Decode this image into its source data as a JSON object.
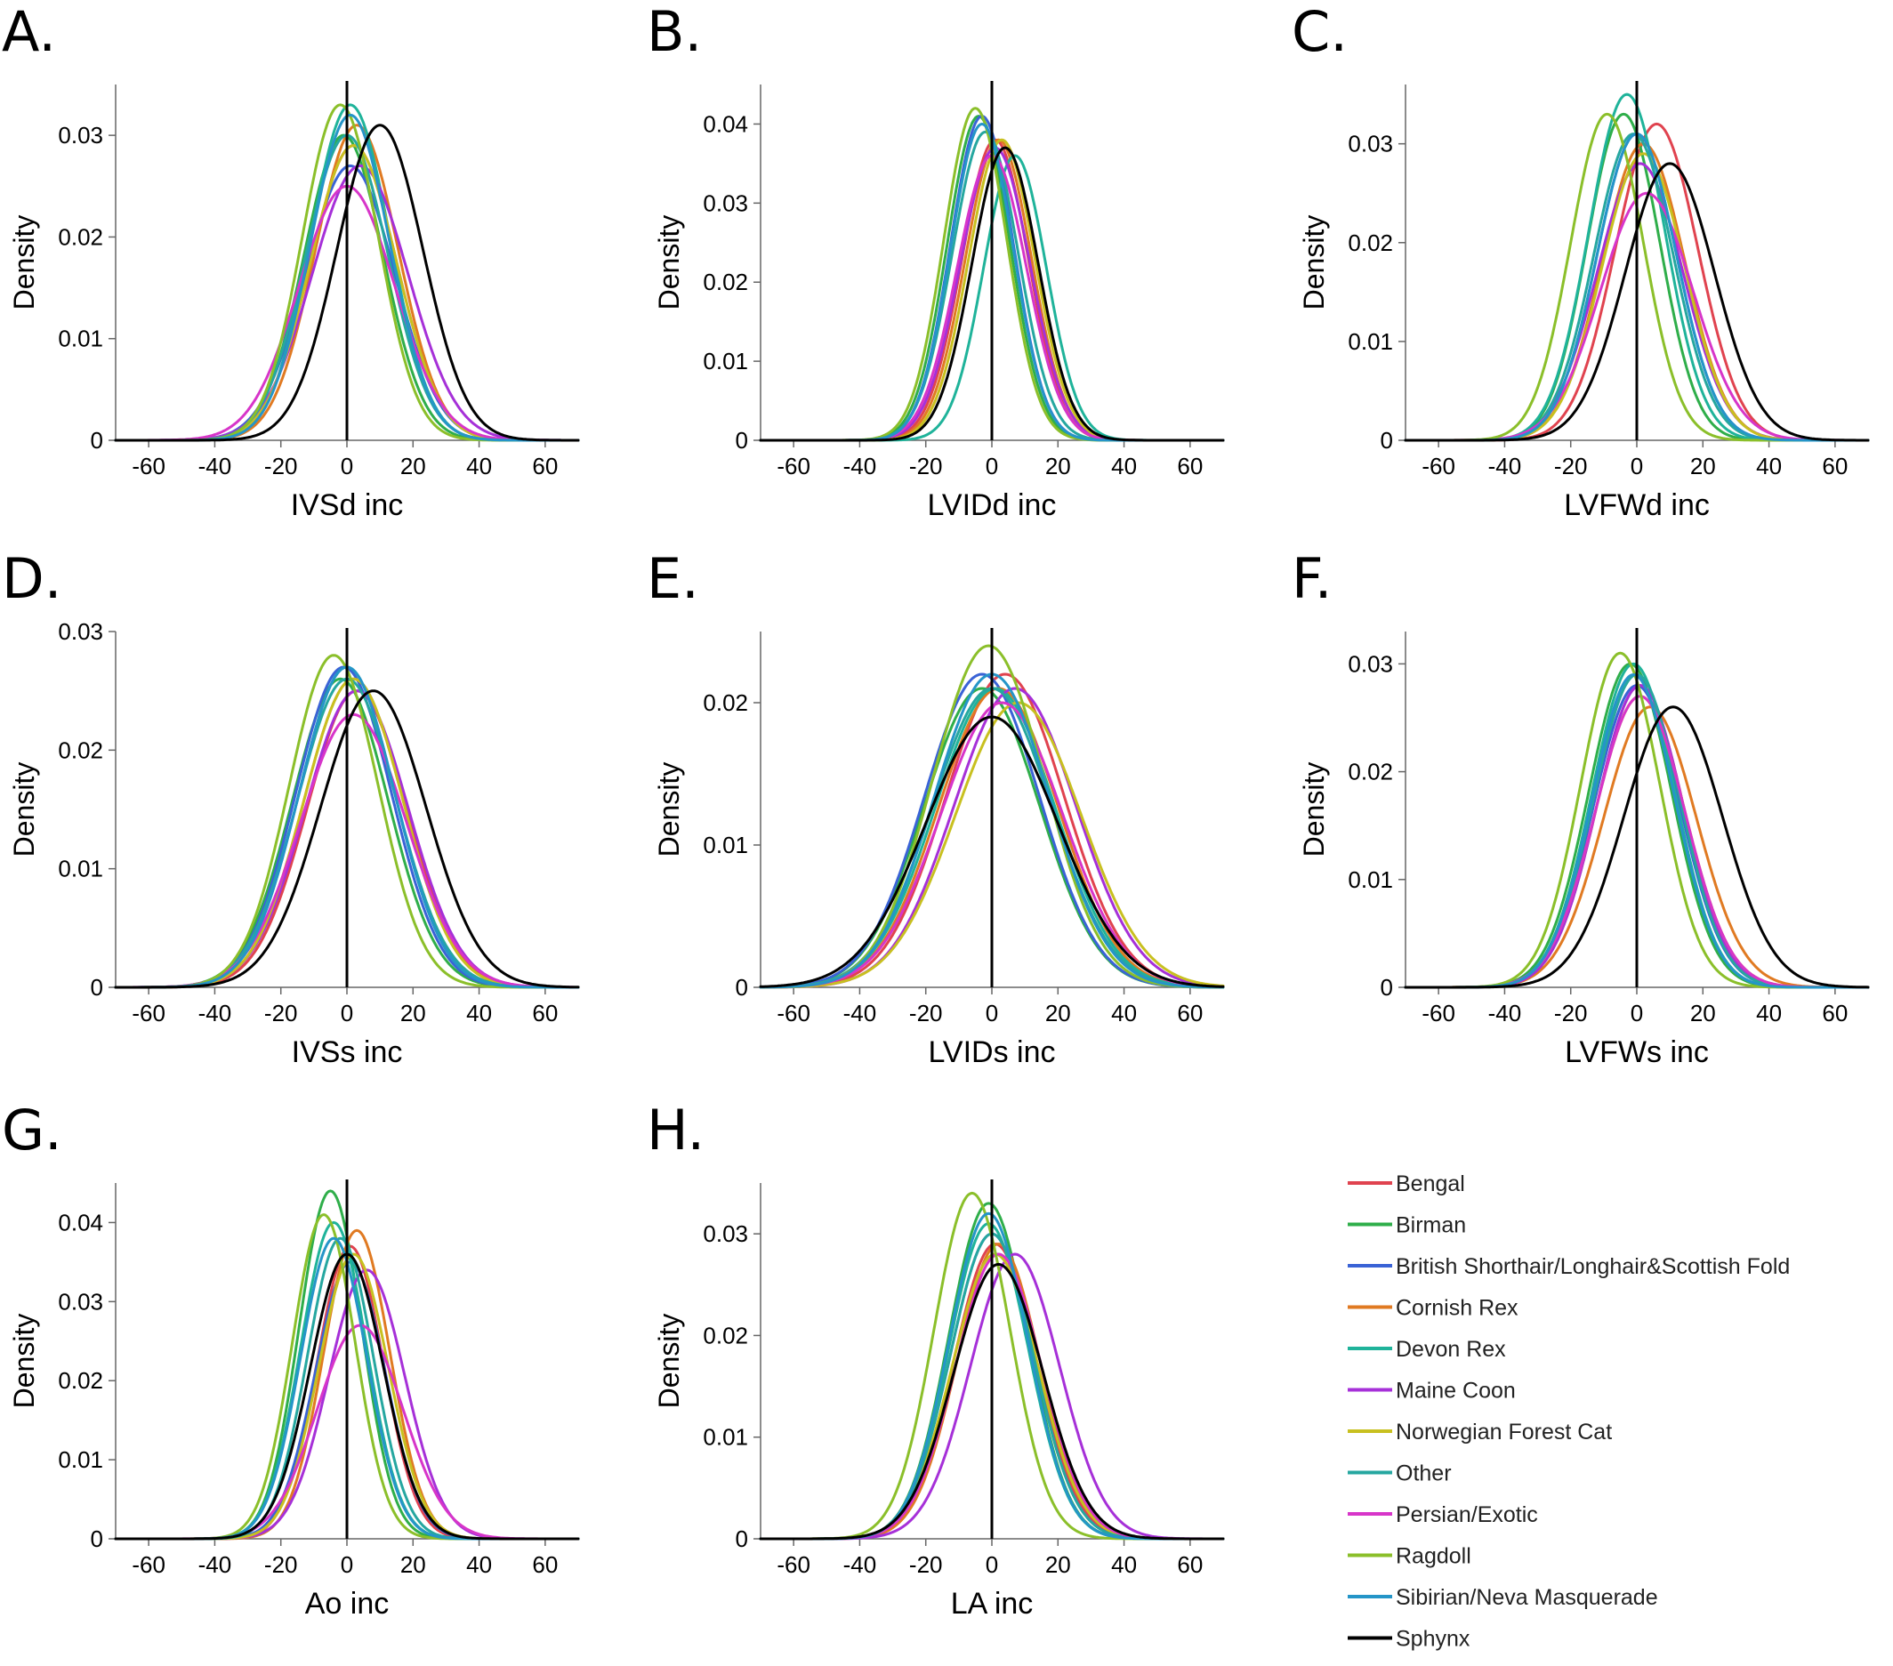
{
  "legend": [
    {
      "name": "Bengal",
      "color": "#e0434f"
    },
    {
      "name": "Birman",
      "color": "#2fae4a"
    },
    {
      "name": "British Shorthair/Longhair&Scottish Fold",
      "color": "#3a63d6"
    },
    {
      "name": "Cornish Rex",
      "color": "#e07a22"
    },
    {
      "name": "Devon Rex",
      "color": "#1fb39a"
    },
    {
      "name": "Maine Coon",
      "color": "#a630d8"
    },
    {
      "name": "Norwegian Forest Cat",
      "color": "#c8c020"
    },
    {
      "name": "Other",
      "color": "#26a7a0"
    },
    {
      "name": "Persian/Exotic",
      "color": "#d735c9"
    },
    {
      "name": "Ragdoll",
      "color": "#8bbf2a"
    },
    {
      "name": "Sibirian/Neva Masquerade",
      "color": "#2595c8"
    },
    {
      "name": "Sphynx",
      "color": "#000000"
    }
  ],
  "chart_data": [
    {
      "type": "line",
      "panel": "A.",
      "xlabel": "IVSd inc",
      "ylabel": "Density",
      "xticks": [
        "-60",
        "-40",
        "-20",
        "0",
        "20",
        "40",
        "60"
      ],
      "yticks": [
        "0",
        "0.01",
        "0.02",
        "0.03"
      ],
      "xlim": [
        -70,
        70
      ],
      "ylim": [
        0,
        0.035
      ],
      "grid": false,
      "series": [
        {
          "name": "Bengal",
          "mean": 2,
          "sd": 13,
          "peak": 0.029
        },
        {
          "name": "Birman",
          "mean": -1,
          "sd": 12,
          "peak": 0.03
        },
        {
          "name": "British Shorthair/Longhair&Scottish Fold",
          "mean": 1,
          "sd": 13.5,
          "peak": 0.027
        },
        {
          "name": "Cornish Rex",
          "mean": 3,
          "sd": 12.5,
          "peak": 0.031
        },
        {
          "name": "Devon Rex",
          "mean": 1,
          "sd": 12,
          "peak": 0.033
        },
        {
          "name": "Maine Coon",
          "mean": 4,
          "sd": 14.5,
          "peak": 0.027
        },
        {
          "name": "Norwegian Forest Cat",
          "mean": 2,
          "sd": 13,
          "peak": 0.029
        },
        {
          "name": "Other",
          "mean": 0,
          "sd": 12.5,
          "peak": 0.03
        },
        {
          "name": "Persian/Exotic",
          "mean": 0,
          "sd": 14.5,
          "peak": 0.025
        },
        {
          "name": "Ragdoll",
          "mean": -2,
          "sd": 11.5,
          "peak": 0.033
        },
        {
          "name": "Sibirian/Neva Masquerade",
          "mean": 1,
          "sd": 12,
          "peak": 0.032
        },
        {
          "name": "Sphynx",
          "mean": 10,
          "sd": 13,
          "peak": 0.031
        }
      ]
    },
    {
      "type": "line",
      "panel": "B.",
      "xlabel": "LVIDd inc",
      "ylabel": "Density",
      "xticks": [
        "-60",
        "-40",
        "-20",
        "0",
        "20",
        "40",
        "60"
      ],
      "yticks": [
        "0",
        "0.01",
        "0.02",
        "0.03",
        "0.04"
      ],
      "xlim": [
        -70,
        70
      ],
      "ylim": [
        0,
        0.045
      ],
      "grid": false,
      "series": [
        {
          "name": "Bengal",
          "mean": 1,
          "sd": 10,
          "peak": 0.038
        },
        {
          "name": "Birman",
          "mean": -4,
          "sd": 9.5,
          "peak": 0.041
        },
        {
          "name": "British Shorthair/Longhair&Scottish Fold",
          "mean": -3,
          "sd": 9.5,
          "peak": 0.041
        },
        {
          "name": "Cornish Rex",
          "mean": 2,
          "sd": 10,
          "peak": 0.038
        },
        {
          "name": "Devon Rex",
          "mean": 7,
          "sd": 9.5,
          "peak": 0.036
        },
        {
          "name": "Maine Coon",
          "mean": 1,
          "sd": 10.5,
          "peak": 0.037
        },
        {
          "name": "Norwegian Forest Cat",
          "mean": 3,
          "sd": 10,
          "peak": 0.038
        },
        {
          "name": "Other",
          "mean": -2,
          "sd": 10,
          "peak": 0.039
        },
        {
          "name": "Persian/Exotic",
          "mean": 0,
          "sd": 10.5,
          "peak": 0.036
        },
        {
          "name": "Ragdoll",
          "mean": -5,
          "sd": 9.5,
          "peak": 0.042
        },
        {
          "name": "Sibirian/Neva Masquerade",
          "mean": -3,
          "sd": 9.5,
          "peak": 0.04
        },
        {
          "name": "Sphynx",
          "mean": 4,
          "sd": 10,
          "peak": 0.037
        }
      ]
    },
    {
      "type": "line",
      "panel": "C.",
      "xlabel": "LVFWd inc",
      "ylabel": "Density",
      "xticks": [
        "-60",
        "-40",
        "-20",
        "0",
        "20",
        "40",
        "60"
      ],
      "yticks": [
        "0",
        "0.01",
        "0.02",
        "0.03"
      ],
      "xlim": [
        -70,
        70
      ],
      "ylim": [
        0,
        0.036
      ],
      "grid": false,
      "series": [
        {
          "name": "Bengal",
          "mean": 6,
          "sd": 12.5,
          "peak": 0.032
        },
        {
          "name": "Birman",
          "mean": -4,
          "sd": 11,
          "peak": 0.033
        },
        {
          "name": "British Shorthair/Longhair&Scottish Fold",
          "mean": 0,
          "sd": 12,
          "peak": 0.031
        },
        {
          "name": "Cornish Rex",
          "mean": 2,
          "sd": 12.5,
          "peak": 0.03
        },
        {
          "name": "Devon Rex",
          "mean": -3,
          "sd": 11.5,
          "peak": 0.035
        },
        {
          "name": "Maine Coon",
          "mean": 1,
          "sd": 13,
          "peak": 0.028
        },
        {
          "name": "Norwegian Forest Cat",
          "mean": 2,
          "sd": 12.5,
          "peak": 0.029
        },
        {
          "name": "Other",
          "mean": -1,
          "sd": 12,
          "peak": 0.031
        },
        {
          "name": "Persian/Exotic",
          "mean": 3,
          "sd": 14,
          "peak": 0.025
        },
        {
          "name": "Ragdoll",
          "mean": -9,
          "sd": 11,
          "peak": 0.033
        },
        {
          "name": "Sibirian/Neva Masquerade",
          "mean": 0,
          "sd": 12,
          "peak": 0.031
        },
        {
          "name": "Sphynx",
          "mean": 10,
          "sd": 13.5,
          "peak": 0.028
        }
      ]
    },
    {
      "type": "line",
      "panel": "D.",
      "xlabel": "IVSs inc",
      "ylabel": "Density",
      "xticks": [
        "-60",
        "-40",
        "-20",
        "0",
        "20",
        "40",
        "60"
      ],
      "yticks": [
        "0",
        "0.01",
        "0.02",
        "0.03"
      ],
      "xlim": [
        -70,
        70
      ],
      "ylim": [
        0,
        0.03
      ],
      "grid": false,
      "series": [
        {
          "name": "Bengal",
          "mean": 3,
          "sd": 15,
          "peak": 0.025
        },
        {
          "name": "Birman",
          "mean": -2,
          "sd": 14.5,
          "peak": 0.026
        },
        {
          "name": "British Shorthair/Longhair&Scottish Fold",
          "mean": -1,
          "sd": 14.5,
          "peak": 0.027
        },
        {
          "name": "Cornish Rex",
          "mean": 2,
          "sd": 15,
          "peak": 0.026
        },
        {
          "name": "Devon Rex",
          "mean": 0,
          "sd": 14.5,
          "peak": 0.027
        },
        {
          "name": "Maine Coon",
          "mean": 3,
          "sd": 15.5,
          "peak": 0.025
        },
        {
          "name": "Norwegian Forest Cat",
          "mean": 2,
          "sd": 15,
          "peak": 0.026
        },
        {
          "name": "Other",
          "mean": 0,
          "sd": 15,
          "peak": 0.026
        },
        {
          "name": "Persian/Exotic",
          "mean": 2,
          "sd": 16,
          "peak": 0.023
        },
        {
          "name": "Ragdoll",
          "mean": -4,
          "sd": 13.5,
          "peak": 0.028
        },
        {
          "name": "Sibirian/Neva Masquerade",
          "mean": 0,
          "sd": 14.5,
          "peak": 0.027
        },
        {
          "name": "Sphynx",
          "mean": 8,
          "sd": 16,
          "peak": 0.025
        }
      ]
    },
    {
      "type": "line",
      "panel": "E.",
      "xlabel": "LVIDs inc",
      "ylabel": "Density",
      "xticks": [
        "-60",
        "-40",
        "-20",
        "0",
        "20",
        "40",
        "60"
      ],
      "yticks": [
        "0",
        "0.01",
        "0.02"
      ],
      "xlim": [
        -70,
        70
      ],
      "ylim": [
        0,
        0.025
      ],
      "grid": false,
      "series": [
        {
          "name": "Bengal",
          "mean": 4,
          "sd": 18,
          "peak": 0.022
        },
        {
          "name": "Birman",
          "mean": -3,
          "sd": 17.5,
          "peak": 0.021
        },
        {
          "name": "British Shorthair/Longhair&Scottish Fold",
          "mean": -3,
          "sd": 17.5,
          "peak": 0.022
        },
        {
          "name": "Cornish Rex",
          "mean": 2,
          "sd": 18,
          "peak": 0.021
        },
        {
          "name": "Devon Rex",
          "mean": 1,
          "sd": 18,
          "peak": 0.021
        },
        {
          "name": "Maine Coon",
          "mean": 7,
          "sd": 18.5,
          "peak": 0.021
        },
        {
          "name": "Norwegian Forest Cat",
          "mean": 8,
          "sd": 19,
          "peak": 0.02
        },
        {
          "name": "Other",
          "mean": 0,
          "sd": 18,
          "peak": 0.021
        },
        {
          "name": "Persian/Exotic",
          "mean": 3,
          "sd": 18.5,
          "peak": 0.02
        },
        {
          "name": "Ragdoll",
          "mean": -1,
          "sd": 17,
          "peak": 0.024
        },
        {
          "name": "Sibirian/Neva Masquerade",
          "mean": 0,
          "sd": 17.5,
          "peak": 0.022
        },
        {
          "name": "Sphynx",
          "mean": 0,
          "sd": 20,
          "peak": 0.019
        }
      ]
    },
    {
      "type": "line",
      "panel": "F.",
      "xlabel": "LVFWs inc",
      "ylabel": "Density",
      "xticks": [
        "-60",
        "-40",
        "-20",
        "0",
        "20",
        "40",
        "60"
      ],
      "yticks": [
        "0",
        "0.01",
        "0.02",
        "0.03"
      ],
      "xlim": [
        -70,
        70
      ],
      "ylim": [
        0,
        0.033
      ],
      "grid": false,
      "series": [
        {
          "name": "Bengal",
          "mean": 1,
          "sd": 13,
          "peak": 0.028
        },
        {
          "name": "Birman",
          "mean": -2,
          "sd": 12.5,
          "peak": 0.03
        },
        {
          "name": "British Shorthair/Longhair&Scottish Fold",
          "mean": 0,
          "sd": 13,
          "peak": 0.028
        },
        {
          "name": "Cornish Rex",
          "mean": 4,
          "sd": 14,
          "peak": 0.026
        },
        {
          "name": "Devon Rex",
          "mean": -1,
          "sd": 12.5,
          "peak": 0.03
        },
        {
          "name": "Maine Coon",
          "mean": 1,
          "sd": 13,
          "peak": 0.028
        },
        {
          "name": "Norwegian Forest Cat",
          "mean": 1,
          "sd": 13.5,
          "peak": 0.027
        },
        {
          "name": "Other",
          "mean": 0,
          "sd": 13,
          "peak": 0.029
        },
        {
          "name": "Persian/Exotic",
          "mean": 1,
          "sd": 13.5,
          "peak": 0.027
        },
        {
          "name": "Ragdoll",
          "mean": -5,
          "sd": 12,
          "peak": 0.031
        },
        {
          "name": "Sibirian/Neva Masquerade",
          "mean": -1,
          "sd": 12.5,
          "peak": 0.029
        },
        {
          "name": "Sphynx",
          "mean": 11,
          "sd": 15,
          "peak": 0.026
        }
      ]
    },
    {
      "type": "line",
      "panel": "G.",
      "xlabel": "Ao inc",
      "ylabel": "Density",
      "xticks": [
        "-60",
        "-40",
        "-20",
        "0",
        "20",
        "40",
        "60"
      ],
      "yticks": [
        "0",
        "0.01",
        "0.02",
        "0.03",
        "0.04"
      ],
      "xlim": [
        -70,
        70
      ],
      "ylim": [
        0,
        0.045
      ],
      "grid": false,
      "series": [
        {
          "name": "Bengal",
          "mean": 1,
          "sd": 10,
          "peak": 0.037
        },
        {
          "name": "Birman",
          "mean": -5,
          "sd": 9.5,
          "peak": 0.044
        },
        {
          "name": "British Shorthair/Longhair&Scottish Fold",
          "mean": 1,
          "sd": 10.5,
          "peak": 0.035
        },
        {
          "name": "Cornish Rex",
          "mean": 3,
          "sd": 10,
          "peak": 0.039
        },
        {
          "name": "Devon Rex",
          "mean": -4,
          "sd": 10,
          "peak": 0.04
        },
        {
          "name": "Maine Coon",
          "mean": 6,
          "sd": 11.5,
          "peak": 0.034
        },
        {
          "name": "Norwegian Forest Cat",
          "mean": 2,
          "sd": 10.5,
          "peak": 0.036
        },
        {
          "name": "Other",
          "mean": -2,
          "sd": 10,
          "peak": 0.038
        },
        {
          "name": "Persian/Exotic",
          "mean": 4,
          "sd": 13,
          "peak": 0.027
        },
        {
          "name": "Ragdoll",
          "mean": -7,
          "sd": 9.5,
          "peak": 0.041
        },
        {
          "name": "Sibirian/Neva Masquerade",
          "mean": -4,
          "sd": 10,
          "peak": 0.038
        },
        {
          "name": "Sphynx",
          "mean": 0,
          "sd": 11,
          "peak": 0.036
        }
      ]
    },
    {
      "type": "line",
      "panel": "H.",
      "xlabel": "LA inc",
      "ylabel": "Density",
      "xticks": [
        "-60",
        "-40",
        "-20",
        "0",
        "20",
        "40",
        "60"
      ],
      "yticks": [
        "0",
        "0.01",
        "0.02",
        "0.03"
      ],
      "xlim": [
        -70,
        70
      ],
      "ylim": [
        0,
        0.035
      ],
      "grid": false,
      "series": [
        {
          "name": "Bengal",
          "mean": 1,
          "sd": 12.5,
          "peak": 0.029
        },
        {
          "name": "Birman",
          "mean": -1,
          "sd": 12,
          "peak": 0.033
        },
        {
          "name": "British Shorthair/Longhair&Scottish Fold",
          "mean": 0,
          "sd": 12.5,
          "peak": 0.03
        },
        {
          "name": "Cornish Rex",
          "mean": 2,
          "sd": 12.5,
          "peak": 0.029
        },
        {
          "name": "Devon Rex",
          "mean": -1,
          "sd": 12,
          "peak": 0.031
        },
        {
          "name": "Maine Coon",
          "mean": 7,
          "sd": 13.5,
          "peak": 0.028
        },
        {
          "name": "Norwegian Forest Cat",
          "mean": 1,
          "sd": 13,
          "peak": 0.028
        },
        {
          "name": "Other",
          "mean": 0,
          "sd": 12.5,
          "peak": 0.03
        },
        {
          "name": "Persian/Exotic",
          "mean": 2,
          "sd": 13,
          "peak": 0.028
        },
        {
          "name": "Ragdoll",
          "mean": -6,
          "sd": 11.5,
          "peak": 0.034
        },
        {
          "name": "Sibirian/Neva Masquerade",
          "mean": -1,
          "sd": 12,
          "peak": 0.032
        },
        {
          "name": "Sphynx",
          "mean": 2,
          "sd": 13.5,
          "peak": 0.027
        }
      ]
    }
  ]
}
